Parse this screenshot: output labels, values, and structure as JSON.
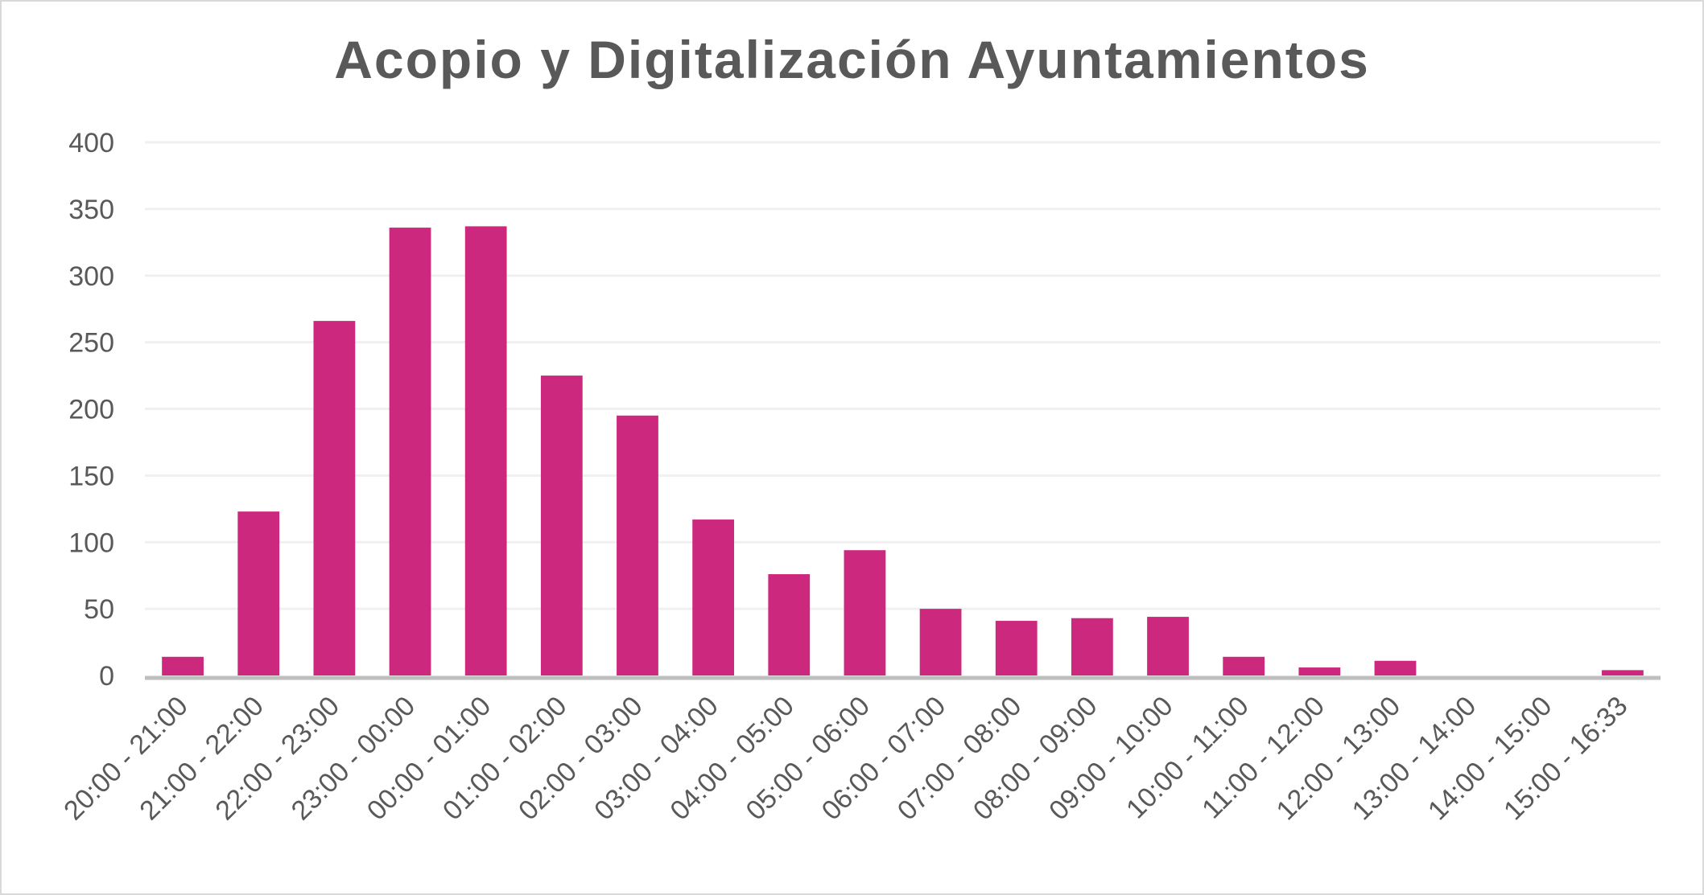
{
  "chart_data": {
    "type": "bar",
    "title": "Acopio y Digitalización Ayuntamientos",
    "xlabel": "",
    "ylabel": "",
    "ylim": [
      0,
      400
    ],
    "yticks": [
      0,
      50,
      100,
      150,
      200,
      250,
      300,
      350,
      400
    ],
    "grid": true,
    "legend": "none",
    "bar_color": "#cc297e",
    "categories": [
      "20:00 - 21:00",
      "21:00 - 22:00",
      "22:00 - 23:00",
      "23:00 - 00:00",
      "00:00 - 01:00",
      "01:00 - 02:00",
      "02:00 - 03:00",
      "03:00 - 04:00",
      "04:00 - 05:00",
      "05:00 - 06:00",
      "06:00 - 07:00",
      "07:00 - 08:00",
      "08:00 - 09:00",
      "09:00 - 10:00",
      "10:00 - 11:00",
      "11:00 - 12:00",
      "12:00 - 13:00",
      "13:00 - 14:00",
      "14:00 - 15:00",
      "15:00 - 16:33"
    ],
    "values": [
      14,
      123,
      266,
      336,
      337,
      225,
      195,
      117,
      76,
      94,
      50,
      41,
      43,
      44,
      14,
      6,
      11,
      0,
      0,
      4
    ]
  }
}
